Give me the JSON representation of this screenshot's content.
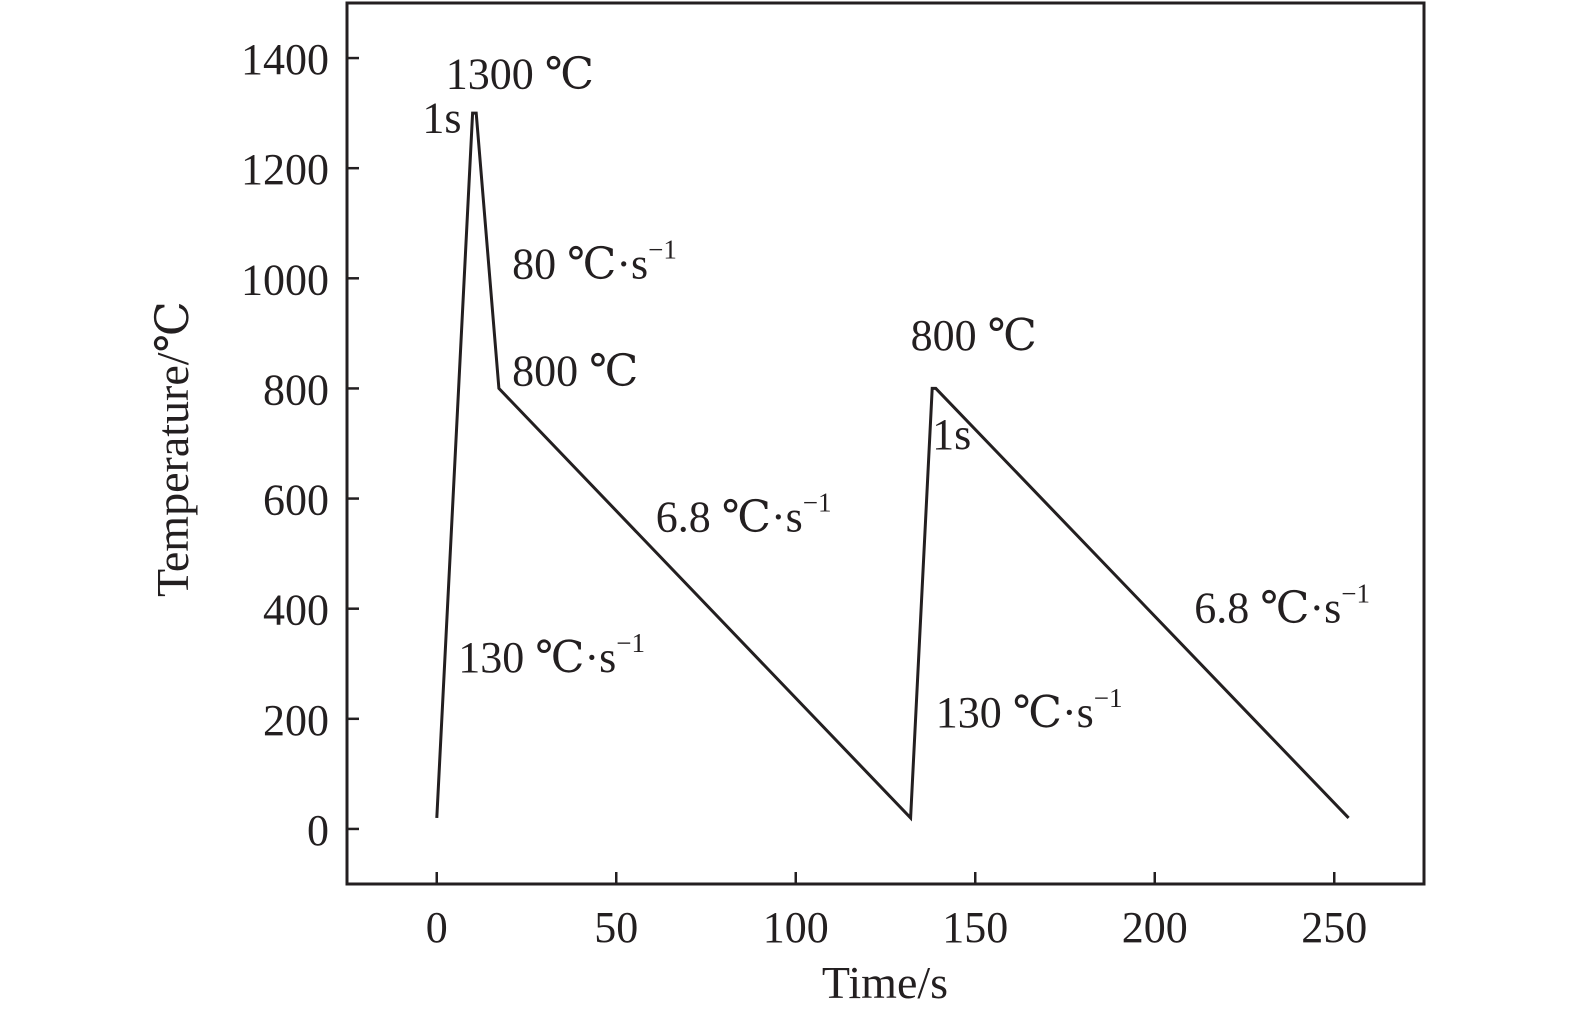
{
  "chart_data": {
    "type": "line",
    "title": "",
    "xlabel": "Time/s",
    "ylabel": "Temperature/℃",
    "xlim": [
      -25,
      275
    ],
    "ylim": [
      -100,
      1500
    ],
    "xticks": [
      0,
      50,
      100,
      150,
      200,
      250
    ],
    "yticks": [
      0,
      200,
      400,
      600,
      800,
      1000,
      1200,
      1400
    ],
    "grid": false,
    "legend": "none",
    "colors": {
      "line": "#231f20",
      "axis": "#231f20",
      "background": "#ffffff"
    },
    "series": [
      {
        "x": [
          0,
          10,
          11,
          17.3,
          132,
          138,
          139,
          254
        ],
        "y": [
          20,
          1300,
          1300,
          800,
          20,
          800,
          800,
          20
        ]
      }
    ],
    "annotations": [
      {
        "id": "peak-temp",
        "text": "1300 ℃",
        "sup": "",
        "x": 2.5,
        "y": 1345
      },
      {
        "id": "hold-1",
        "text": "1s",
        "sup": "",
        "x": -4,
        "y": 1265
      },
      {
        "id": "cool-rate-80",
        "text": "80 ℃·s",
        "sup": "−1",
        "x": 21,
        "y": 1000
      },
      {
        "id": "temp-800-first",
        "text": "800 ℃",
        "sup": "",
        "x": 21,
        "y": 805
      },
      {
        "id": "cool-rate-6-8-first",
        "text": "6.8 ℃·s",
        "sup": "−1",
        "x": 61,
        "y": 540
      },
      {
        "id": "heat-rate-130-first",
        "text": "130 ℃·s",
        "sup": "−1",
        "x": 6,
        "y": 285
      },
      {
        "id": "temp-800-second",
        "text": "800 ℃",
        "sup": "",
        "x": 132,
        "y": 870
      },
      {
        "id": "hold-2",
        "text": "1s",
        "sup": "",
        "x": 138,
        "y": 690
      },
      {
        "id": "cool-rate-6-8-second",
        "text": "6.8 ℃·s",
        "sup": "−1",
        "x": 211,
        "y": 375
      },
      {
        "id": "heat-rate-130-second",
        "text": "130 ℃·s",
        "sup": "−1",
        "x": 139,
        "y": 185
      }
    ]
  }
}
